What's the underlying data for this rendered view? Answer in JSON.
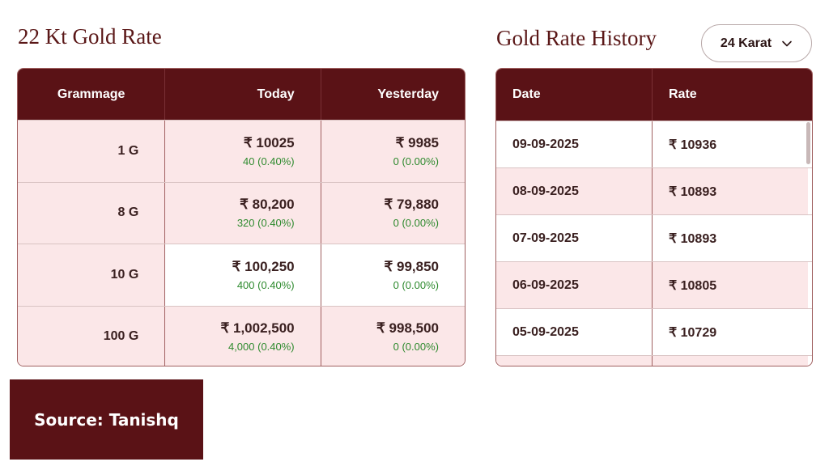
{
  "left": {
    "title": "22 Kt Gold Rate",
    "headers": [
      "Grammage",
      "Today",
      "Yesterday"
    ],
    "rows": [
      {
        "grammage": "1 G",
        "today": "₹ 10025",
        "today_change": "40 (0.40%)",
        "yesterday": "₹ 9985",
        "yesterday_change": "0 (0.00%)"
      },
      {
        "grammage": "8 G",
        "today": "₹ 80,200",
        "today_change": "320 (0.40%)",
        "yesterday": "₹ 79,880",
        "yesterday_change": "0 (0.00%)"
      },
      {
        "grammage": "10 G",
        "today": "₹ 100,250",
        "today_change": "400 (0.40%)",
        "yesterday": "₹ 99,850",
        "yesterday_change": "0 (0.00%)"
      },
      {
        "grammage": "100 G",
        "today": "₹ 1,002,500",
        "today_change": "4,000 (0.40%)",
        "yesterday": "₹ 998,500",
        "yesterday_change": "0 (0.00%)"
      }
    ]
  },
  "right": {
    "title": "Gold Rate History",
    "karat_selected": "24 Karat",
    "headers": [
      "Date",
      "Rate"
    ],
    "rows": [
      {
        "date": "09-09-2025",
        "rate": "₹ 10936"
      },
      {
        "date": "08-09-2025",
        "rate": "₹ 10893"
      },
      {
        "date": "07-09-2025",
        "rate": "₹ 10893"
      },
      {
        "date": "06-09-2025",
        "rate": "₹ 10805"
      },
      {
        "date": "05-09-2025",
        "rate": "₹ 10729"
      }
    ]
  },
  "source": "Source: Tanishq",
  "colors": {
    "brand": "#5a1216",
    "row_pink": "#fbe7e8",
    "positive_change": "#2e8a2e"
  },
  "icons": {
    "dropdown": "chevron-down-icon"
  }
}
